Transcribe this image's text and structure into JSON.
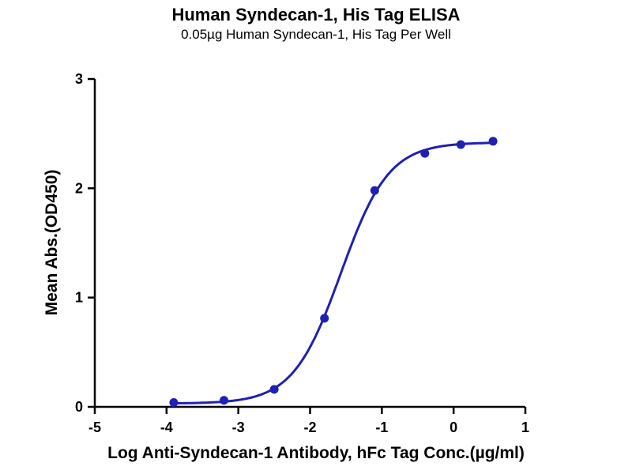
{
  "chart_data": {
    "type": "scatter",
    "title": "Human Syndecan-1, His Tag ELISA",
    "subtitle": "0.05µg Human Syndecan-1, His Tag Per Well",
    "xlabel": "Log Anti-Syndecan-1 Antibody, hFc Tag Conc.(µg/ml)",
    "ylabel": "Mean Abs.(OD450)",
    "xlim": [
      -5,
      1
    ],
    "ylim": [
      0,
      3
    ],
    "xticks": [
      -5,
      -4,
      -3,
      -2,
      -1,
      0,
      1
    ],
    "yticks": [
      0,
      1,
      2,
      3
    ],
    "points": [
      {
        "x": -3.9,
        "y": 0.04
      },
      {
        "x": -3.2,
        "y": 0.06
      },
      {
        "x": -2.5,
        "y": 0.16
      },
      {
        "x": -1.8,
        "y": 0.81
      },
      {
        "x": -1.1,
        "y": 1.98
      },
      {
        "x": -0.4,
        "y": 2.32
      },
      {
        "x": 0.1,
        "y": 2.4
      },
      {
        "x": 0.55,
        "y": 2.43
      }
    ],
    "fit": {
      "model": "4PL",
      "bottom": 0.03,
      "top": 2.42,
      "logEC50": -1.57,
      "hill": 1.3
    },
    "line_color": "#2020b2",
    "axis_color": "#000000",
    "grid": false,
    "legend": "none"
  }
}
